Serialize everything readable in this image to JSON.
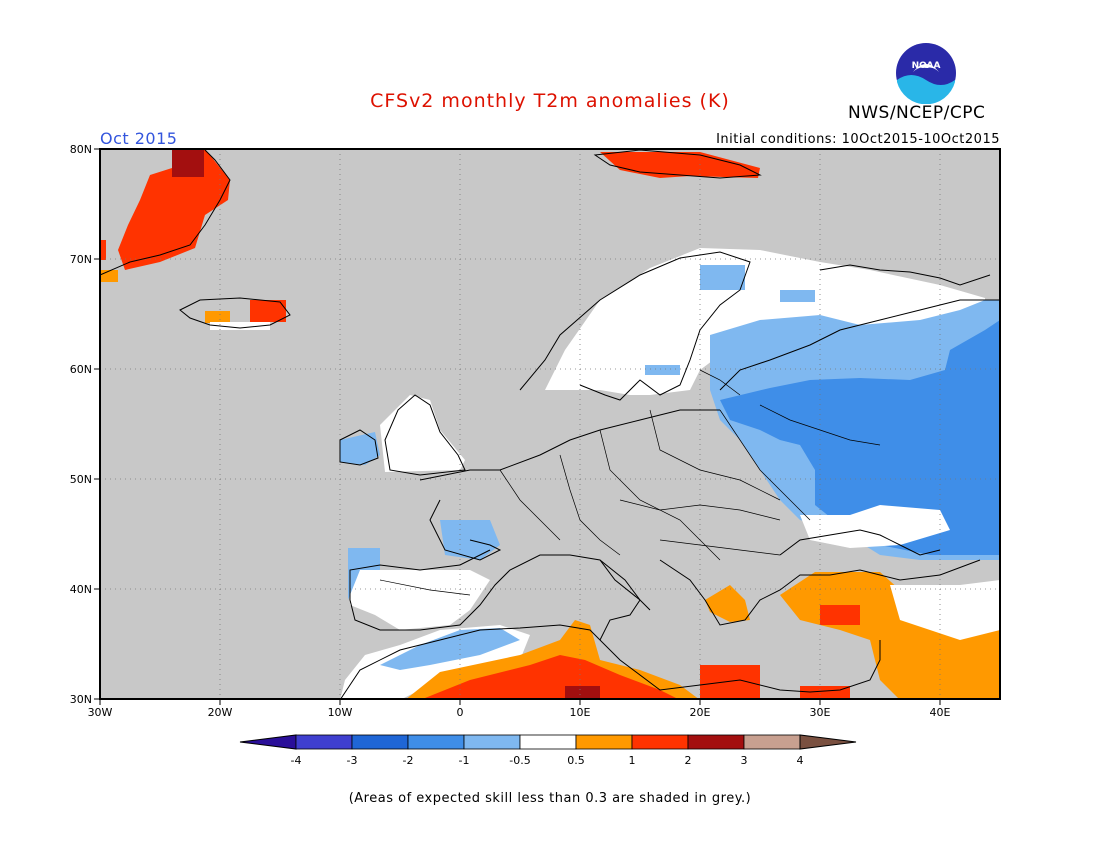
{
  "header": {
    "title": "CFSv2 monthly T2m anomalies (K)",
    "title_color": "#dd1100",
    "agency": "NWS/NCEP/CPC",
    "logo_text": "NOAA",
    "month": "Oct 2015",
    "month_color": "#3355dd",
    "initial_conditions": "Initial conditions: 10Oct2015-10Oct2015"
  },
  "map": {
    "lat_labels": [
      "80N",
      "70N",
      "60N",
      "50N",
      "40N",
      "30N"
    ],
    "lon_labels": [
      "30W",
      "20W",
      "10W",
      "0",
      "10E",
      "20E",
      "30E",
      "40E"
    ],
    "lat_range": [
      30,
      80
    ],
    "lon_range": [
      -30,
      45
    ],
    "background_color": "#c8c8c8",
    "grid": "dotted"
  },
  "colorbar": {
    "labels": [
      "-4",
      "-3",
      "-2",
      "-1",
      "-0.5",
      "0.5",
      "1",
      "2",
      "3",
      "4"
    ],
    "colors": [
      "#2a0f99",
      "#3f3fcf",
      "#1f66d6",
      "#3f8ee8",
      "#7fb8f0",
      "#ffffff",
      "#ff9900",
      "#ff3300",
      "#a30f0f",
      "#c8a090",
      "#7a5040"
    ]
  },
  "footnote": "(Areas of expected skill less than 0.3 are shaded in grey.)"
}
